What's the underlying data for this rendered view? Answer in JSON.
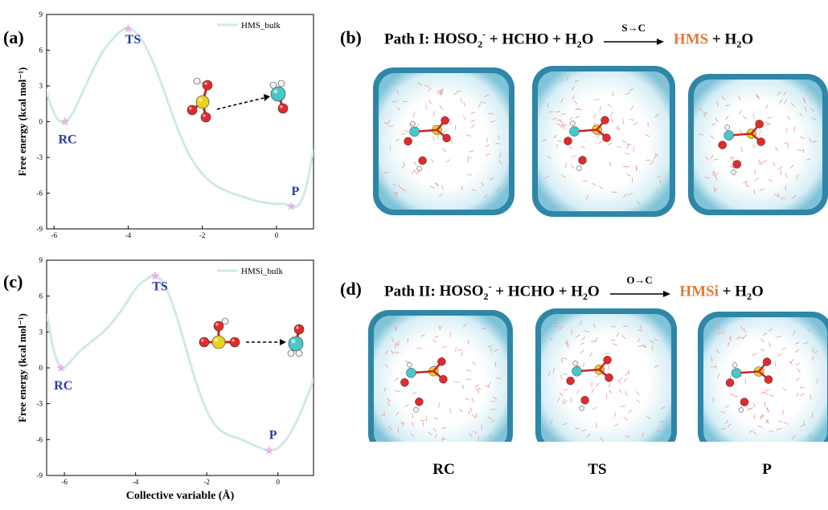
{
  "panels": {
    "a": {
      "label": "(a)"
    },
    "b": {
      "label": "(b)"
    },
    "c": {
      "label": "(c)"
    },
    "d": {
      "label": "(d)"
    }
  },
  "eq_b": {
    "path": "Path I:",
    "r1": "HOSO",
    "r1_sub": "2",
    "r1_sup": "-",
    "r2": "+ HCHO + H",
    "r2_sub": "2",
    "r2_tail": "O",
    "arrow_label": "S→C",
    "product": "HMS",
    "p2": "+ H",
    "p2_sub": "2",
    "p2_tail": "O"
  },
  "eq_d": {
    "path": "Path II:",
    "r1": "HOSO",
    "r1_sub": "2",
    "r1_sup": "-",
    "r2": "+ HCHO + H",
    "r2_sub": "2",
    "r2_tail": "O",
    "arrow_label": "O→C",
    "product": "HMSi",
    "p2": "+ H",
    "p2_sub": "2",
    "p2_tail": "O"
  },
  "bottom_labels": [
    "RC",
    "TS",
    "P"
  ],
  "colors": {
    "curve": "#cfe9ea",
    "marker": "#e8b4e8",
    "state_label": "#2a3aa8",
    "product": "#e07b39",
    "water_box": "#2f86a6"
  },
  "chart_data": [
    {
      "type": "line",
      "series": [
        {
          "name": "HMS_bulk",
          "x": [
            -6.5,
            -6.3,
            -6.1,
            -5.9,
            -5.7,
            -5.5,
            -5.3,
            -5.0,
            -4.7,
            -4.4,
            -4.2,
            -4.0,
            -3.8,
            -3.6,
            -3.3,
            -3.0,
            -2.7,
            -2.4,
            -2.1,
            -1.8,
            -1.5,
            -1.2,
            -0.9,
            -0.6,
            -0.3,
            0.0,
            0.2,
            0.4,
            0.6,
            0.8,
            1.0
          ],
          "y": [
            5.2,
            3.5,
            1.5,
            0.2,
            0.0,
            0.7,
            2.0,
            4.0,
            5.8,
            7.0,
            7.6,
            7.8,
            7.5,
            6.7,
            4.8,
            2.3,
            -0.3,
            -2.5,
            -4.0,
            -5.0,
            -5.6,
            -6.0,
            -6.3,
            -6.6,
            -6.8,
            -6.9,
            -6.9,
            -7.1,
            -7.0,
            -5.5,
            -2.3
          ]
        }
      ],
      "markers": [
        {
          "label": "RC",
          "x": -5.7,
          "y": 0.0
        },
        {
          "label": "TS",
          "x": -4.0,
          "y": 7.8
        },
        {
          "label": "P",
          "x": 0.4,
          "y": -7.1
        }
      ],
      "xlim": [
        -6.2,
        1.0
      ],
      "ylim": [
        -9,
        9
      ],
      "xticks": [
        -6,
        -4,
        -2,
        0
      ],
      "yticks": [
        -9,
        -6,
        -3,
        0,
        3,
        6,
        9
      ],
      "xlabel": "",
      "ylabel": "Free energy (kcal mol⁻¹)",
      "legend": "top-right"
    },
    {
      "type": "line",
      "series": [
        {
          "name": "HMSi_bulk",
          "x": [
            -6.5,
            -6.3,
            -6.1,
            -5.9,
            -5.6,
            -5.2,
            -4.8,
            -4.4,
            -4.0,
            -3.7,
            -3.45,
            -3.2,
            -2.9,
            -2.6,
            -2.3,
            -2.0,
            -1.7,
            -1.4,
            -1.1,
            -0.8,
            -0.5,
            -0.25,
            0.0,
            0.3,
            0.6,
            0.9,
            1.0
          ],
          "y": [
            4.5,
            1.5,
            0.0,
            0.3,
            1.3,
            2.3,
            3.3,
            4.8,
            6.6,
            7.4,
            7.7,
            7.0,
            4.8,
            1.8,
            -1.2,
            -3.6,
            -5.0,
            -5.6,
            -5.9,
            -6.3,
            -6.7,
            -6.9,
            -6.7,
            -5.7,
            -4.0,
            -1.8,
            -0.9
          ]
        }
      ],
      "markers": [
        {
          "label": "RC",
          "x": -6.1,
          "y": 0.0
        },
        {
          "label": "TS",
          "x": -3.45,
          "y": 7.7
        },
        {
          "label": "P",
          "x": -0.25,
          "y": -6.9
        }
      ],
      "xlim": [
        -6.5,
        1.0
      ],
      "ylim": [
        -9,
        9
      ],
      "xticks": [
        -6,
        -4,
        -2,
        0
      ],
      "yticks": [
        -9,
        -6,
        -3,
        0,
        3,
        6,
        9
      ],
      "xlabel": "Collective variable (Å)",
      "ylabel": "Free energy (kcal mol⁻¹)",
      "legend": "top-right"
    }
  ]
}
